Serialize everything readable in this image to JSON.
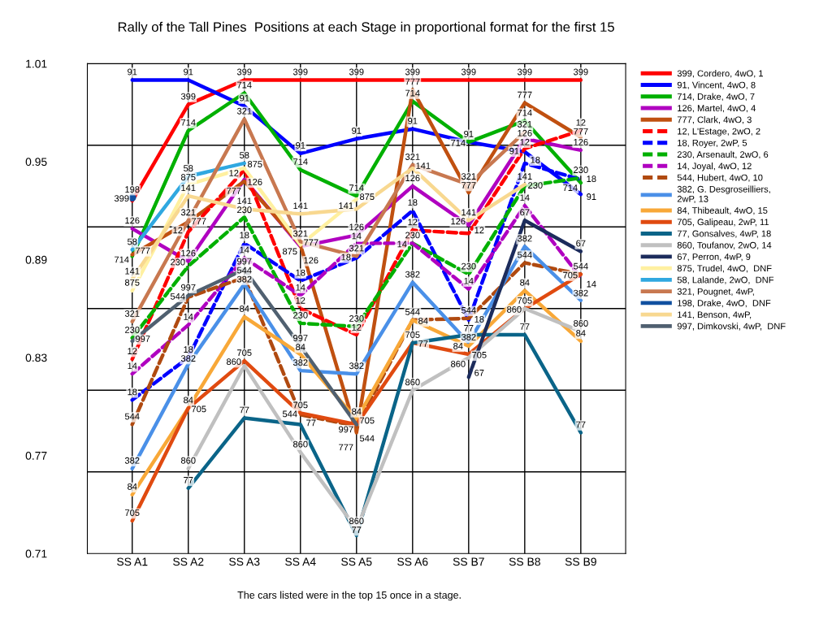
{
  "chart_data": {
    "type": "line",
    "title": "Rally of the Tall Pines  Positions at each Stage in proportional format for the first 15",
    "categories": [
      "SS A1",
      "SS A2",
      "SS A3",
      "SS A4",
      "SS A5",
      "SS A6",
      "SS B7",
      "SS B8",
      "SS B9"
    ],
    "ylim": [
      0.71,
      1.01
    ],
    "yticks": [
      0.71,
      0.77,
      0.83,
      0.89,
      0.95,
      1.01
    ],
    "grid": "x",
    "legend": "right",
    "marker": "none",
    "ref_lines": [
      {
        "axis": "y",
        "value": 0.76,
        "color": "#000000"
      },
      {
        "axis": "y",
        "value": 0.81,
        "color": "#000000"
      },
      {
        "axis": "y",
        "value": 0.86,
        "color": "#000000"
      },
      {
        "axis": "y",
        "value": 0.91,
        "color": "#000000"
      },
      {
        "axis": "y",
        "value": 0.96,
        "color": "#000000"
      }
    ],
    "series": [
      {
        "name": "399, Cordero, 4wO, 1",
        "color": "#ff0000",
        "line_style": "solid",
        "values": [
          0.926,
          0.985,
          1.0,
          1.0,
          1.0,
          1.0,
          1.0,
          1.0,
          1.0
        ]
      },
      {
        "name": "91, Vincent, 4wO, 8",
        "color": "#0000ff",
        "line_style": "solid",
        "values": [
          1.0,
          1.0,
          0.984,
          0.955,
          0.964,
          0.97,
          0.962,
          0.956,
          0.93
        ]
      },
      {
        "name": "714, Drake, 4wO, 7",
        "color": "#00b000",
        "line_style": "solid",
        "values": [
          0.892,
          0.969,
          0.992,
          0.945,
          0.929,
          0.987,
          0.962,
          0.975,
          0.937
        ]
      },
      {
        "name": "126, Martel, 4wO, 4",
        "color": "#b000c0",
        "line_style": "solid",
        "values": [
          0.909,
          0.889,
          0.939,
          0.898,
          0.905,
          0.935,
          0.911,
          0.964,
          0.957
        ]
      },
      {
        "name": "777, Clark, 4wO, 3",
        "color": "#c05010",
        "line_style": "solid",
        "values": [
          0.893,
          0.913,
          0.938,
          0.899,
          0.784,
          0.994,
          0.931,
          0.986,
          0.965
        ]
      },
      {
        "name": "12, L'Estage, 2wO, 2",
        "color": "#ff0000",
        "line_style": "dashed",
        "values": [
          0.829,
          0.907,
          0.945,
          0.86,
          0.844,
          0.908,
          0.906,
          0.958,
          0.969
        ]
      },
      {
        "name": "18, Royer, 2wP, 5",
        "color": "#0000ff",
        "line_style": "dashed",
        "values": [
          0.804,
          0.83,
          0.9,
          0.877,
          0.891,
          0.92,
          0.853,
          0.949,
          0.939
        ]
      },
      {
        "name": "230, Arsenault, 2wO, 6",
        "color": "#00b000",
        "line_style": "dashed",
        "values": [
          0.842,
          0.886,
          0.916,
          0.851,
          0.849,
          0.9,
          0.881,
          0.935,
          0.94
        ]
      },
      {
        "name": "14, Joyal, 4wO, 12",
        "color": "#b000c0",
        "line_style": "dashed",
        "values": [
          0.82,
          0.85,
          0.891,
          0.868,
          0.9,
          0.9,
          0.872,
          0.923,
          0.879
        ]
      },
      {
        "name": "544, Hubert, 4wO, 10",
        "color": "#b04a10",
        "line_style": "dashed",
        "values": [
          0.789,
          0.867,
          0.879,
          0.795,
          0.788,
          0.853,
          0.854,
          0.888,
          0.881
        ]
      },
      {
        "name": "382, G. Desgroseilliers,\n2wP, 13",
        "color": "#4a90e8",
        "line_style": "solid",
        "values": [
          0.762,
          0.826,
          0.875,
          0.822,
          0.82,
          0.876,
          0.839,
          0.898,
          0.865
        ]
      },
      {
        "name": "84, Thibeault, 4wO, 15",
        "color": "#f8a838",
        "line_style": "solid",
        "values": [
          0.746,
          0.799,
          0.855,
          0.832,
          0.792,
          0.853,
          0.837,
          0.871,
          0.84
        ]
      },
      {
        "name": "705, Galipeau, 2wP, 11",
        "color": "#e04a10",
        "line_style": "solid",
        "values": [
          0.73,
          0.799,
          0.828,
          0.796,
          0.789,
          0.839,
          0.832,
          0.86,
          0.881
        ]
      },
      {
        "name": "77, Gonsalves, 4wP, 18",
        "color": "#0a6488",
        "line_style": "solid",
        "values": [
          null,
          0.75,
          0.793,
          0.789,
          0.721,
          0.839,
          0.844,
          0.844,
          0.784
        ]
      },
      {
        "name": "860, Toufanov, 2wO, 14",
        "color": "#c0c0c0",
        "line_style": "solid",
        "values": [
          null,
          0.762,
          0.825,
          0.772,
          0.725,
          0.81,
          0.83,
          0.86,
          0.846
        ]
      },
      {
        "name": "67, Perron, 4wP, 9",
        "color": "#1c2c5c",
        "line_style": "solid",
        "values": [
          null,
          null,
          null,
          null,
          null,
          null,
          0.818,
          0.914,
          0.895
        ]
      },
      {
        "name": "875, Trudel, 4wO,  DNF",
        "color": "#fff0a0",
        "line_style": "solid",
        "values": [
          0.871,
          0.936,
          0.946,
          0.899,
          0.927,
          null,
          null,
          null,
          null
        ]
      },
      {
        "name": "58, Lalande, 2wO,  DNF",
        "color": "#30a8e0",
        "line_style": "solid",
        "values": [
          0.896,
          0.941,
          0.949,
          null,
          null,
          null,
          null,
          null,
          null
        ]
      },
      {
        "name": "321, Pougnet, 4wP,",
        "color": "#c87850",
        "line_style": "solid",
        "values": [
          0.852,
          0.914,
          0.976,
          0.901,
          0.892,
          0.948,
          0.936,
          0.968,
          null
        ]
      },
      {
        "name": "198, Drake, 4wO,  DNF",
        "color": "#1050a0",
        "line_style": "solid",
        "marker": "circle",
        "values": [
          0.928,
          null,
          null,
          null,
          null,
          null,
          null,
          null,
          null
        ]
      },
      {
        "name": "141, Benson, 4wP,",
        "color": "#f8d890",
        "line_style": "solid",
        "values": [
          0.878,
          0.929,
          0.921,
          0.918,
          0.921,
          0.946,
          0.914,
          0.936,
          null
        ]
      },
      {
        "name": "997, Dimkovski, 4wP,  DNF",
        "color": "#506070",
        "line_style": "solid",
        "values": [
          0.84,
          0.868,
          0.884,
          0.837,
          0.789,
          null,
          null,
          null,
          null
        ]
      }
    ],
    "annotations": [
      "The cars listed were in the top 15 once in a stage.",
      {
        "text": "399",
        "x": "SS A1",
        "y": 0.926
      },
      {
        "text": "399",
        "x": "SS A2",
        "y": 0.985
      },
      {
        "text": "399",
        "x": "SS A3",
        "y": 1.0
      },
      {
        "text": "399",
        "x": "SS A4",
        "y": 1.0
      },
      {
        "text": "399",
        "x": "SS A5",
        "y": 1.0
      },
      {
        "text": "399",
        "x": "SS A6",
        "y": 1.0
      },
      {
        "text": "399",
        "x": "SS B7",
        "y": 1.0
      },
      {
        "text": "399",
        "x": "SS B8",
        "y": 1.0
      },
      {
        "text": "399",
        "x": "SS B9",
        "y": 1.0
      },
      {
        "text": "91",
        "x": "SS A1",
        "y": 1.0
      },
      {
        "text": "91",
        "x": "SS A2",
        "y": 1.0
      },
      {
        "text": "91",
        "x": "SS A3",
        "y": 0.984
      },
      {
        "text": "91",
        "x": "SS A4",
        "y": 0.955
      },
      {
        "text": "91",
        "x": "SS A5",
        "y": 0.964
      },
      {
        "text": "91",
        "x": "SS A6",
        "y": 0.97
      },
      {
        "text": "91",
        "x": "SS B7",
        "y": 0.962
      },
      {
        "text": "91",
        "x": "SS B8",
        "y": 0.956
      },
      {
        "text": "91",
        "x": "SS B9",
        "y": 0.93
      },
      {
        "text": "714",
        "x": "SS A1",
        "y": 0.892
      },
      {
        "text": "714",
        "x": "SS A2",
        "y": 0.969
      },
      {
        "text": "714",
        "x": "SS A3",
        "y": 0.992
      },
      {
        "text": "714",
        "x": "SS A4",
        "y": 0.945
      },
      {
        "text": "714",
        "x": "SS A5",
        "y": 0.929
      },
      {
        "text": "714",
        "x": "SS A6",
        "y": 0.987
      },
      {
        "text": "714",
        "x": "SS B7",
        "y": 0.962
      },
      {
        "text": "714",
        "x": "SS B8",
        "y": 0.975
      },
      {
        "text": "714",
        "x": "SS B9",
        "y": 0.937
      },
      {
        "text": "126",
        "x": "SS A1",
        "y": 0.909
      },
      {
        "text": "126",
        "x": "SS A2",
        "y": 0.889
      },
      {
        "text": "126",
        "x": "SS A3",
        "y": 0.939
      },
      {
        "text": "126",
        "x": "SS A4",
        "y": 0.898
      },
      {
        "text": "126",
        "x": "SS A5",
        "y": 0.905
      },
      {
        "text": "126",
        "x": "SS A6",
        "y": 0.935
      },
      {
        "text": "126",
        "x": "SS B7",
        "y": 0.911
      },
      {
        "text": "126",
        "x": "SS B8",
        "y": 0.964
      },
      {
        "text": "126",
        "x": "SS B9",
        "y": 0.957
      },
      {
        "text": "777",
        "x": "SS A1",
        "y": 0.893
      },
      {
        "text": "777",
        "x": "SS A2",
        "y": 0.913
      },
      {
        "text": "777",
        "x": "SS A3",
        "y": 0.938
      },
      {
        "text": "777",
        "x": "SS A4",
        "y": 0.899
      },
      {
        "text": "777",
        "x": "SS A5",
        "y": 0.784
      },
      {
        "text": "777",
        "x": "SS A6",
        "y": 0.994
      },
      {
        "text": "777",
        "x": "SS B7",
        "y": 0.931
      },
      {
        "text": "777",
        "x": "SS B8",
        "y": 0.986
      },
      {
        "text": "777",
        "x": "SS B9",
        "y": 0.965
      },
      {
        "text": "12",
        "x": "SS A1",
        "y": 0.829
      },
      {
        "text": "12",
        "x": "SS A2",
        "y": 0.907
      },
      {
        "text": "12",
        "x": "SS A3",
        "y": 0.945
      },
      {
        "text": "12",
        "x": "SS A4",
        "y": 0.86
      },
      {
        "text": "12",
        "x": "SS A5",
        "y": 0.844
      },
      {
        "text": "12",
        "x": "SS A6",
        "y": 0.908
      },
      {
        "text": "12",
        "x": "SS B7",
        "y": 0.906
      },
      {
        "text": "12",
        "x": "SS B8",
        "y": 0.958
      },
      {
        "text": "12",
        "x": "SS B9",
        "y": 0.969
      },
      {
        "text": "18",
        "x": "SS A1",
        "y": 0.804
      },
      {
        "text": "18",
        "x": "SS A2",
        "y": 0.83
      },
      {
        "text": "18",
        "x": "SS A3",
        "y": 0.9
      },
      {
        "text": "18",
        "x": "SS A4",
        "y": 0.877
      },
      {
        "text": "18",
        "x": "SS A5",
        "y": 0.891
      },
      {
        "text": "18",
        "x": "SS A6",
        "y": 0.92
      },
      {
        "text": "18",
        "x": "SS B7",
        "y": 0.853
      },
      {
        "text": "18",
        "x": "SS B8",
        "y": 0.949
      },
      {
        "text": "18",
        "x": "SS B9",
        "y": 0.939
      },
      {
        "text": "230",
        "x": "SS A1",
        "y": 0.842
      },
      {
        "text": "230",
        "x": "SS A2",
        "y": 0.886
      },
      {
        "text": "230",
        "x": "SS A3",
        "y": 0.916
      },
      {
        "text": "230",
        "x": "SS A4",
        "y": 0.851
      },
      {
        "text": "230",
        "x": "SS A5",
        "y": 0.849
      },
      {
        "text": "230",
        "x": "SS A6",
        "y": 0.9
      },
      {
        "text": "230",
        "x": "SS B7",
        "y": 0.881
      },
      {
        "text": "230",
        "x": "SS B8",
        "y": 0.935
      },
      {
        "text": "230",
        "x": "SS B9",
        "y": 0.94
      },
      {
        "text": "14",
        "x": "SS A1",
        "y": 0.82
      },
      {
        "text": "14",
        "x": "SS A2",
        "y": 0.85
      },
      {
        "text": "14",
        "x": "SS A3",
        "y": 0.891
      },
      {
        "text": "14",
        "x": "SS A4",
        "y": 0.868
      },
      {
        "text": "14",
        "x": "SS A5",
        "y": 0.9
      },
      {
        "text": "14",
        "x": "SS A6",
        "y": 0.9
      },
      {
        "text": "14",
        "x": "SS B7",
        "y": 0.872
      },
      {
        "text": "14",
        "x": "SS B8",
        "y": 0.923
      },
      {
        "text": "14",
        "x": "SS B9",
        "y": 0.879
      },
      {
        "text": "544",
        "x": "SS A1",
        "y": 0.789
      },
      {
        "text": "544",
        "x": "SS A2",
        "y": 0.867
      },
      {
        "text": "544",
        "x": "SS A3",
        "y": 0.879
      },
      {
        "text": "544",
        "x": "SS A4",
        "y": 0.795
      },
      {
        "text": "544",
        "x": "SS A5",
        "y": 0.788
      },
      {
        "text": "544",
        "x": "SS A6",
        "y": 0.853
      },
      {
        "text": "544",
        "x": "SS B7",
        "y": 0.854
      },
      {
        "text": "544",
        "x": "SS B8",
        "y": 0.888
      },
      {
        "text": "544",
        "x": "SS B9",
        "y": 0.881
      },
      {
        "text": "382",
        "x": "SS A1",
        "y": 0.762
      },
      {
        "text": "382",
        "x": "SS A2",
        "y": 0.826
      },
      {
        "text": "382",
        "x": "SS A3",
        "y": 0.875
      },
      {
        "text": "382",
        "x": "SS A4",
        "y": 0.822
      },
      {
        "text": "382",
        "x": "SS A5",
        "y": 0.82
      },
      {
        "text": "382",
        "x": "SS A6",
        "y": 0.876
      },
      {
        "text": "382",
        "x": "SS B7",
        "y": 0.839
      },
      {
        "text": "382",
        "x": "SS B8",
        "y": 0.898
      },
      {
        "text": "382",
        "x": "SS B9",
        "y": 0.865
      },
      {
        "text": "84",
        "x": "SS A1",
        "y": 0.746
      },
      {
        "text": "84",
        "x": "SS A2",
        "y": 0.799
      },
      {
        "text": "84",
        "x": "SS A3",
        "y": 0.855
      },
      {
        "text": "84",
        "x": "SS A4",
        "y": 0.832
      },
      {
        "text": "84",
        "x": "SS A5",
        "y": 0.792
      },
      {
        "text": "84",
        "x": "SS A6",
        "y": 0.853
      },
      {
        "text": "84",
        "x": "SS B7",
        "y": 0.837
      },
      {
        "text": "84",
        "x": "SS B8",
        "y": 0.871
      },
      {
        "text": "84",
        "x": "SS B9",
        "y": 0.84
      },
      {
        "text": "705",
        "x": "SS A1",
        "y": 0.73
      },
      {
        "text": "705",
        "x": "SS A2",
        "y": 0.799
      },
      {
        "text": "705",
        "x": "SS A3",
        "y": 0.828
      },
      {
        "text": "705",
        "x": "SS A4",
        "y": 0.796
      },
      {
        "text": "705",
        "x": "SS A5",
        "y": 0.789
      },
      {
        "text": "705",
        "x": "SS A6",
        "y": 0.839
      },
      {
        "text": "705",
        "x": "SS B7",
        "y": 0.832
      },
      {
        "text": "705",
        "x": "SS B8",
        "y": 0.86
      },
      {
        "text": "705",
        "x": "SS B9",
        "y": 0.881
      },
      {
        "text": "77",
        "x": "SS A2",
        "y": 0.75
      },
      {
        "text": "77",
        "x": "SS A3",
        "y": 0.793
      },
      {
        "text": "77",
        "x": "SS A4",
        "y": 0.789
      },
      {
        "text": "77",
        "x": "SS A5",
        "y": 0.721
      },
      {
        "text": "77",
        "x": "SS A6",
        "y": 0.839
      },
      {
        "text": "77",
        "x": "SS B7",
        "y": 0.844
      },
      {
        "text": "77",
        "x": "SS B8",
        "y": 0.844
      },
      {
        "text": "77",
        "x": "SS B9",
        "y": 0.784
      },
      {
        "text": "860",
        "x": "SS A2",
        "y": 0.762
      },
      {
        "text": "860",
        "x": "SS A3",
        "y": 0.825
      },
      {
        "text": "860",
        "x": "SS A4",
        "y": 0.772
      },
      {
        "text": "860",
        "x": "SS A5",
        "y": 0.725
      },
      {
        "text": "860",
        "x": "SS A6",
        "y": 0.81
      },
      {
        "text": "860",
        "x": "SS B7",
        "y": 0.83
      },
      {
        "text": "860",
        "x": "SS B8",
        "y": 0.86
      },
      {
        "text": "860",
        "x": "SS B9",
        "y": 0.846
      },
      {
        "text": "67",
        "x": "SS B7",
        "y": 0.818
      },
      {
        "text": "67",
        "x": "SS B8",
        "y": 0.914
      },
      {
        "text": "67",
        "x": "SS B9",
        "y": 0.895
      },
      {
        "text": "875",
        "x": "SS A1",
        "y": 0.871
      },
      {
        "text": "875",
        "x": "SS A2",
        "y": 0.936
      },
      {
        "text": "875",
        "x": "SS A3",
        "y": 0.946
      },
      {
        "text": "875",
        "x": "SS A4",
        "y": 0.899
      },
      {
        "text": "875",
        "x": "SS A5",
        "y": 0.927
      },
      {
        "text": "58",
        "x": "SS A1",
        "y": 0.896
      },
      {
        "text": "58",
        "x": "SS A2",
        "y": 0.941
      },
      {
        "text": "58",
        "x": "SS A3",
        "y": 0.949
      },
      {
        "text": "321",
        "x": "SS A1",
        "y": 0.852
      },
      {
        "text": "321",
        "x": "SS A2",
        "y": 0.914
      },
      {
        "text": "321",
        "x": "SS A3",
        "y": 0.976
      },
      {
        "text": "321",
        "x": "SS A4",
        "y": 0.901
      },
      {
        "text": "321",
        "x": "SS A5",
        "y": 0.892
      },
      {
        "text": "321",
        "x": "SS A6",
        "y": 0.948
      },
      {
        "text": "321",
        "x": "SS B7",
        "y": 0.936
      },
      {
        "text": "321",
        "x": "SS B8",
        "y": 0.968
      },
      {
        "text": "198",
        "x": "SS A1",
        "y": 0.928
      },
      {
        "text": "141",
        "x": "SS A1",
        "y": 0.878
      },
      {
        "text": "141",
        "x": "SS A2",
        "y": 0.929
      },
      {
        "text": "141",
        "x": "SS A3",
        "y": 0.921
      },
      {
        "text": "141",
        "x": "SS A4",
        "y": 0.918
      },
      {
        "text": "141",
        "x": "SS A5",
        "y": 0.921
      },
      {
        "text": "141",
        "x": "SS A6",
        "y": 0.946
      },
      {
        "text": "141",
        "x": "SS B7",
        "y": 0.914
      },
      {
        "text": "141",
        "x": "SS B8",
        "y": 0.936
      },
      {
        "text": "997",
        "x": "SS A1",
        "y": 0.84
      },
      {
        "text": "997",
        "x": "SS A2",
        "y": 0.868
      },
      {
        "text": "997",
        "x": "SS A3",
        "y": 0.884
      },
      {
        "text": "997",
        "x": "SS A4",
        "y": 0.837
      },
      {
        "text": "997",
        "x": "SS A5",
        "y": 0.789
      }
    ]
  }
}
